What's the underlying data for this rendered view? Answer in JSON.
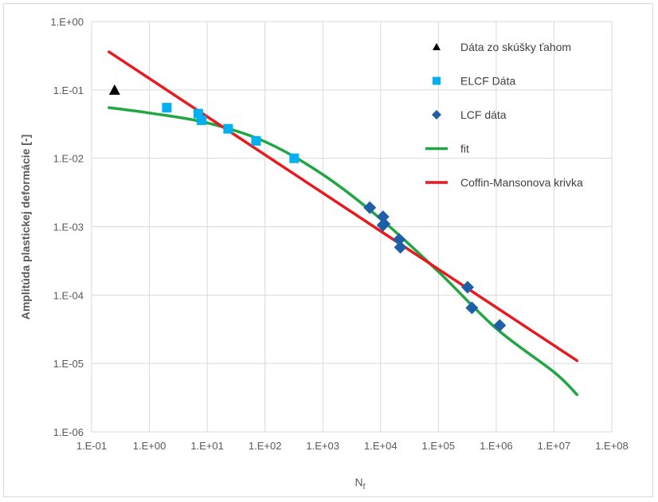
{
  "chart_data": {
    "type": "scatter",
    "title": "",
    "xlabel": "N",
    "xlabel_subscript": "f",
    "ylabel": "Amplitúda plastickej deformácie [-]",
    "xscale": "log",
    "yscale": "log",
    "xlim": [
      0.1,
      100000000
    ],
    "ylim": [
      1e-06,
      1
    ],
    "x_tick_labels": [
      "1.E-01",
      "1.E+00",
      "1.E+01",
      "1.E+02",
      "1.E+03",
      "1.E+04",
      "1.E+05",
      "1.E+06",
      "1.E+07",
      "1.E+08"
    ],
    "y_tick_labels": [
      "1.E+00",
      "1.E-01",
      "1.E-02",
      "1.E-03",
      "1.E-04",
      "1.E-05",
      "1.E-06"
    ],
    "grid": true,
    "legend_position": "right",
    "series": [
      {
        "name": "Dáta zo skúšky ťahom",
        "marker": "triangle",
        "color": "#000000",
        "points": [
          [
            0.25,
            0.1
          ]
        ]
      },
      {
        "name": "ELCF Dáta",
        "marker": "square",
        "color": "#00b0f0",
        "points": [
          [
            2,
            0.055
          ],
          [
            7,
            0.045
          ],
          [
            8,
            0.036
          ],
          [
            23,
            0.027
          ],
          [
            70,
            0.018
          ],
          [
            320,
            0.01
          ]
        ]
      },
      {
        "name": "LCF dáta",
        "marker": "diamond",
        "color": "#1f5fa8",
        "points": [
          [
            6500,
            0.0019
          ],
          [
            11000,
            0.0014
          ],
          [
            11500,
            0.0011
          ],
          [
            11000,
            0.00105
          ],
          [
            21000,
            0.00065
          ],
          [
            22000,
            0.0005
          ],
          [
            320000,
            0.00013
          ],
          [
            380000,
            6.5e-05
          ],
          [
            1150000,
            3.6e-05
          ]
        ]
      },
      {
        "name": "fit",
        "line": true,
        "color": "#21a545",
        "points": [
          [
            0.2,
            0.055
          ],
          [
            1,
            0.046
          ],
          [
            10,
            0.033
          ],
          [
            100,
            0.0175
          ],
          [
            1000,
            0.0058
          ],
          [
            10000,
            0.0013
          ],
          [
            100000,
            0.00022
          ],
          [
            1000000,
            3.25e-05
          ],
          [
            10000000,
            7.5e-06
          ],
          [
            25000000,
            3.5e-06
          ]
        ]
      },
      {
        "name": "Coffin-Mansonova krivka",
        "line": true,
        "color": "#e8191f",
        "points": [
          [
            0.2,
            0.36
          ],
          [
            25000000,
            1.1e-05
          ]
        ]
      }
    ]
  }
}
